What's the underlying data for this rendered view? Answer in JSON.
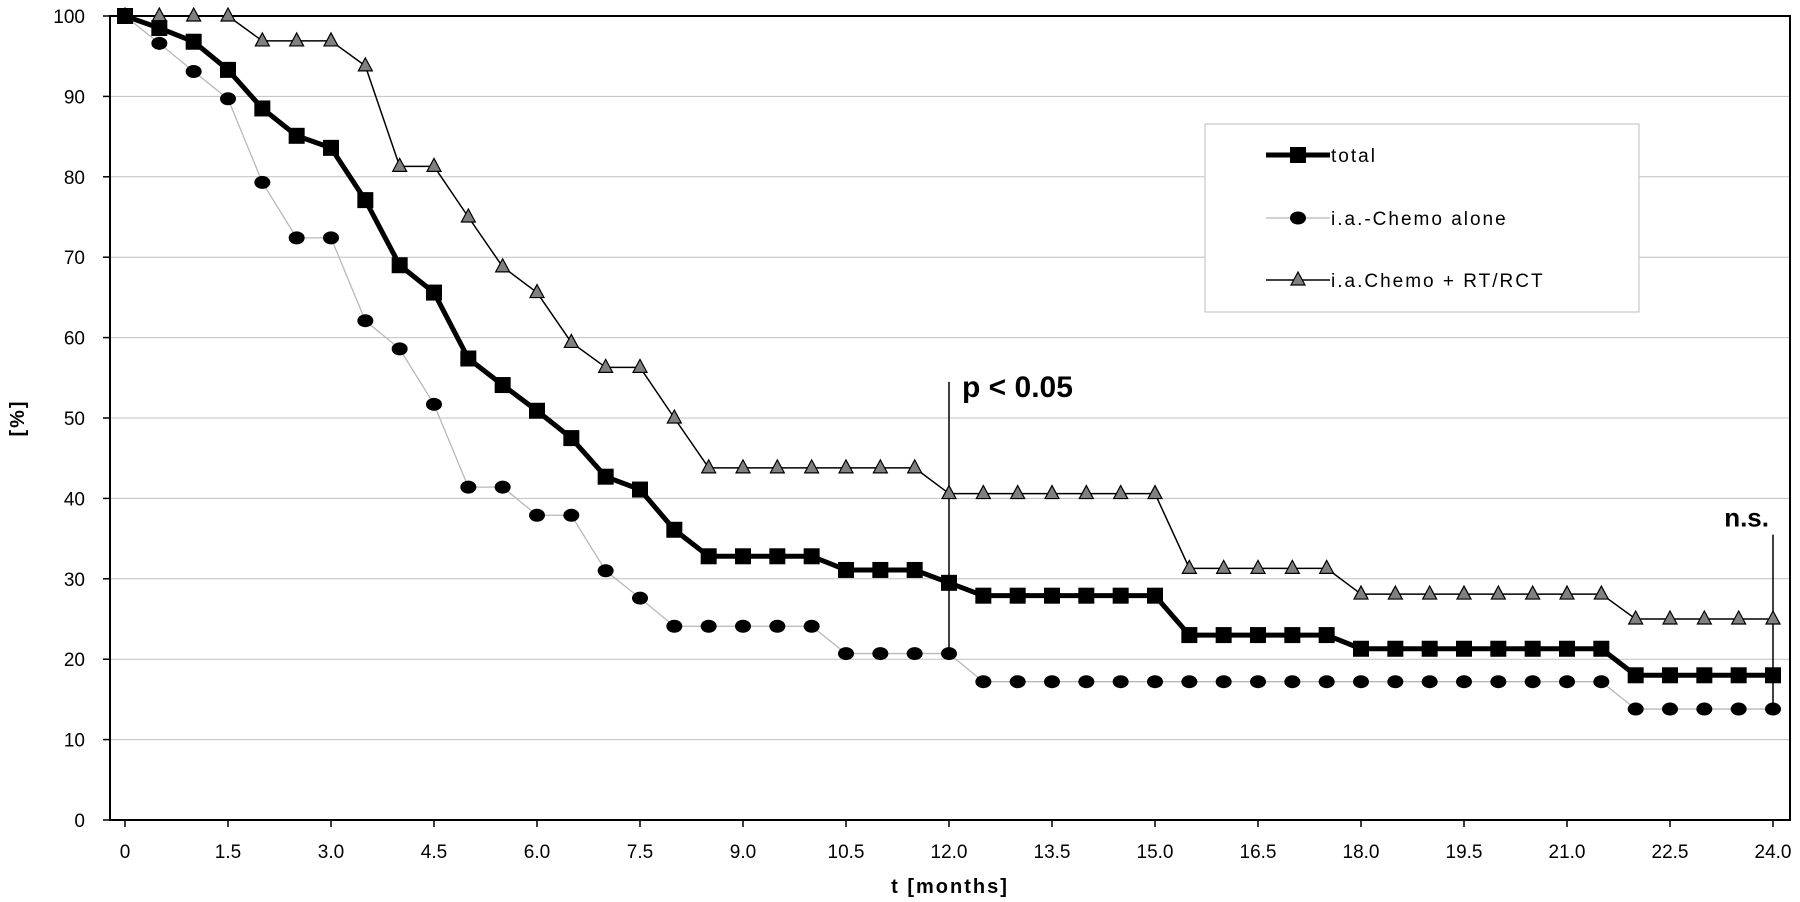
{
  "chart_data": {
    "type": "line",
    "title": "",
    "xlabel": "t [months]",
    "ylabel": "[%]",
    "xlim": [
      0,
      24
    ],
    "ylim": [
      0,
      100
    ],
    "xticks": [
      0,
      1.5,
      3.0,
      4.5,
      6.0,
      7.5,
      9.0,
      10.5,
      12.0,
      13.5,
      15.0,
      16.5,
      18.0,
      19.5,
      21.0,
      22.5,
      24.0
    ],
    "xtick_labels": [
      "0",
      "1.5",
      "3.0",
      "4.5",
      "6.0",
      "7.5",
      "9.0",
      "10.5",
      "12.0",
      "13.5",
      "15.0",
      "16.5",
      "18.0",
      "19.5",
      "21.0",
      "22.5",
      "24.0"
    ],
    "yticks": [
      0,
      10,
      20,
      30,
      40,
      50,
      60,
      70,
      80,
      90,
      100
    ],
    "ytick_labels": [
      "0",
      "10",
      "20",
      "30",
      "40",
      "50",
      "60",
      "70",
      "80",
      "90",
      "100"
    ],
    "grid": "horizontal",
    "legend_position": "top-right",
    "series": [
      {
        "name": "total",
        "marker": "square",
        "color": "#000000",
        "x": [
          0,
          0.5,
          1.0,
          1.5,
          2.0,
          2.5,
          3.0,
          3.5,
          4.0,
          4.5,
          5.0,
          5.5,
          6.0,
          6.5,
          7.0,
          7.5,
          8.0,
          8.5,
          9.0,
          9.5,
          10.0,
          10.5,
          11.0,
          11.5,
          12.0,
          12.5,
          13.0,
          13.5,
          14.0,
          14.5,
          15.0,
          15.5,
          16.0,
          16.5,
          17.0,
          17.5,
          18.0,
          18.5,
          19.0,
          19.5,
          20.0,
          20.5,
          21.0,
          21.5,
          22.0,
          22.5,
          23.0,
          23.5,
          24.0
        ],
        "y": [
          100,
          98.5,
          96.8,
          93.3,
          88.5,
          85.1,
          83.6,
          77.1,
          69.0,
          65.6,
          57.4,
          54.1,
          50.9,
          47.5,
          42.7,
          41.1,
          36.1,
          32.8,
          32.8,
          32.8,
          32.8,
          31.1,
          31.1,
          31.1,
          29.5,
          27.9,
          27.9,
          27.9,
          27.9,
          27.9,
          27.9,
          23.0,
          23.0,
          23.0,
          23.0,
          23.0,
          21.3,
          21.3,
          21.3,
          21.3,
          21.3,
          21.3,
          21.3,
          21.3,
          18.0,
          18.0,
          18.0,
          18.0,
          18.0
        ]
      },
      {
        "name": "i.a.-Chemo alone",
        "marker": "circle",
        "color": "#000000",
        "x": [
          0,
          0.5,
          1.0,
          1.5,
          2.0,
          2.5,
          3.0,
          3.5,
          4.0,
          4.5,
          5.0,
          5.5,
          6.0,
          6.5,
          7.0,
          7.5,
          8.0,
          8.5,
          9.0,
          9.5,
          10.0,
          10.5,
          11.0,
          11.5,
          12.0,
          12.5,
          13.0,
          13.5,
          14.0,
          14.5,
          15.0,
          15.5,
          16.0,
          16.5,
          17.0,
          17.5,
          18.0,
          18.5,
          19.0,
          19.5,
          20.0,
          20.5,
          21.0,
          21.5,
          22.0,
          22.5,
          23.0,
          23.5,
          24.0
        ],
        "y": [
          100,
          96.6,
          93.1,
          89.7,
          79.3,
          72.4,
          72.4,
          62.1,
          58.6,
          51.7,
          41.4,
          41.4,
          37.9,
          37.9,
          31.0,
          27.6,
          24.1,
          24.1,
          24.1,
          24.1,
          24.1,
          20.7,
          20.7,
          20.7,
          20.7,
          17.2,
          17.2,
          17.2,
          17.2,
          17.2,
          17.2,
          17.2,
          17.2,
          17.2,
          17.2,
          17.2,
          17.2,
          17.2,
          17.2,
          17.2,
          17.2,
          17.2,
          17.2,
          17.2,
          13.8,
          13.8,
          13.8,
          13.8,
          13.8
        ]
      },
      {
        "name": "i.a.Chemo + RT/RCT",
        "marker": "triangle",
        "color": "#808080",
        "x": [
          0,
          0.5,
          1.0,
          1.5,
          2.0,
          2.5,
          3.0,
          3.5,
          4.0,
          4.5,
          5.0,
          5.5,
          6.0,
          6.5,
          7.0,
          7.5,
          8.0,
          8.5,
          9.0,
          9.5,
          10.0,
          10.5,
          11.0,
          11.5,
          12.0,
          12.5,
          13.0,
          13.5,
          14.0,
          14.5,
          15.0,
          15.5,
          16.0,
          16.5,
          17.0,
          17.5,
          18.0,
          18.5,
          19.0,
          19.5,
          20.0,
          20.5,
          21.0,
          21.5,
          22.0,
          22.5,
          23.0,
          23.5,
          24.0
        ],
        "y": [
          100,
          100,
          100,
          100,
          96.9,
          96.9,
          96.9,
          93.8,
          81.3,
          81.3,
          75.0,
          68.8,
          65.6,
          59.4,
          56.3,
          56.3,
          50.0,
          43.8,
          43.8,
          43.8,
          43.8,
          43.8,
          43.8,
          43.8,
          40.6,
          40.6,
          40.6,
          40.6,
          40.6,
          40.6,
          40.6,
          31.3,
          31.3,
          31.3,
          31.3,
          31.3,
          28.1,
          28.1,
          28.1,
          28.1,
          28.1,
          28.1,
          28.1,
          28.1,
          25.0,
          25.0,
          25.0,
          25.0,
          25.0
        ]
      }
    ],
    "annotations": [
      {
        "text": "p < 0.05",
        "x": 12.0,
        "y_top": 54.5,
        "y_bottom": 20.7
      },
      {
        "text": "n.s.",
        "x": 24.0,
        "y_top": 35.5,
        "y_bottom": 13.8
      }
    ]
  }
}
